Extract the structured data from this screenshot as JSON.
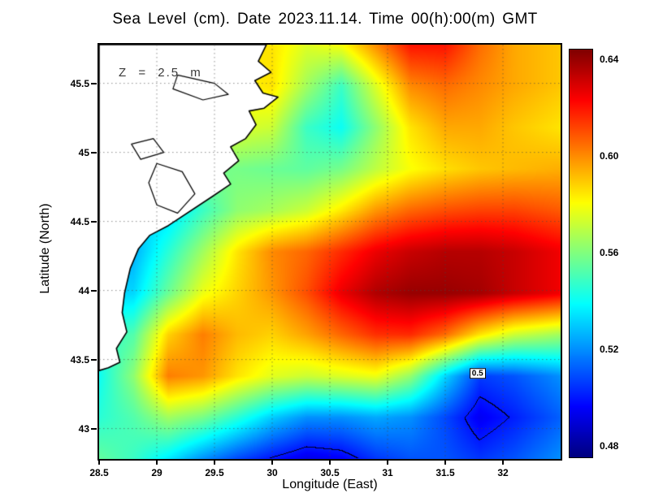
{
  "chart_data": {
    "type": "heatmap",
    "title": "Sea Level (cm). Date 2023.11.14. Time 00(h):00(m) GMT",
    "xlabel": "Longitude (East)",
    "ylabel": "Latitude (North)",
    "annotation": {
      "text": "Z = 2.5 m"
    },
    "xlim": [
      28.5,
      32.5
    ],
    "ylim": [
      42.78,
      45.78
    ],
    "grid_lines": "dotted",
    "colormap": "jet",
    "xticks": [
      {
        "value": 28.5,
        "label": "28.5"
      },
      {
        "value": 29,
        "label": "29"
      },
      {
        "value": 29.5,
        "label": "29.5"
      },
      {
        "value": 30,
        "label": "30"
      },
      {
        "value": 30.5,
        "label": "30.5"
      },
      {
        "value": 31,
        "label": "31"
      },
      {
        "value": 31.5,
        "label": "31.5"
      },
      {
        "value": 32,
        "label": "32"
      }
    ],
    "yticks": [
      {
        "value": 43,
        "label": "43"
      },
      {
        "value": 43.5,
        "label": "43.5"
      },
      {
        "value": 44,
        "label": "44"
      },
      {
        "value": 44.5,
        "label": "44.5"
      },
      {
        "value": 45,
        "label": "45"
      },
      {
        "value": 45.5,
        "label": "45.5"
      }
    ],
    "colorbar": {
      "position": "right",
      "min": 0.475,
      "max": 0.644,
      "ticks": [
        {
          "value": 0.48,
          "label": "0.48"
        },
        {
          "value": 0.52,
          "label": "0.52"
        },
        {
          "value": 0.56,
          "label": "0.56"
        },
        {
          "value": 0.6,
          "label": "0.60"
        },
        {
          "value": 0.64,
          "label": "0.64"
        }
      ]
    },
    "contour": {
      "level": 0.5,
      "label": "0.5",
      "label_lon": 31.78,
      "label_lat": 43.4
    },
    "field": {
      "lons": [
        28.5,
        28.8,
        29.1,
        29.4,
        29.7,
        30.0,
        30.3,
        30.6,
        30.9,
        31.2,
        31.5,
        31.8,
        32.1,
        32.5
      ],
      "lats": [
        45.78,
        45.48,
        45.18,
        44.88,
        44.58,
        44.28,
        43.98,
        43.68,
        43.38,
        43.08,
        42.78
      ],
      "values": [
        [
          0.58,
          0.58,
          0.58,
          0.58,
          0.585,
          0.585,
          0.575,
          0.58,
          0.6,
          0.62,
          0.62,
          0.605,
          0.595,
          0.59
        ],
        [
          0.58,
          0.58,
          0.58,
          0.58,
          0.582,
          0.585,
          0.565,
          0.548,
          0.575,
          0.6,
          0.605,
          0.6,
          0.595,
          0.59
        ],
        [
          0.575,
          0.575,
          0.575,
          0.575,
          0.575,
          0.572,
          0.548,
          0.54,
          0.562,
          0.585,
          0.595,
          0.595,
          0.59,
          0.585
        ],
        [
          0.56,
          0.56,
          0.56,
          0.558,
          0.558,
          0.556,
          0.554,
          0.558,
          0.57,
          0.58,
          0.586,
          0.59,
          0.592,
          0.594
        ],
        [
          0.53,
          0.53,
          0.532,
          0.548,
          0.562,
          0.566,
          0.572,
          0.584,
          0.598,
          0.606,
          0.61,
          0.612,
          0.612,
          0.608
        ],
        [
          0.522,
          0.525,
          0.545,
          0.565,
          0.585,
          0.6,
          0.606,
          0.616,
          0.626,
          0.632,
          0.635,
          0.635,
          0.632,
          0.625
        ],
        [
          0.53,
          0.532,
          0.556,
          0.578,
          0.588,
          0.598,
          0.61,
          0.626,
          0.636,
          0.64,
          0.64,
          0.638,
          0.632,
          0.625
        ],
        [
          0.545,
          0.552,
          0.588,
          0.602,
          0.592,
          0.588,
          0.596,
          0.606,
          0.615,
          0.616,
          0.605,
          0.585,
          0.572,
          0.565
        ],
        [
          0.54,
          0.562,
          0.602,
          0.598,
          0.585,
          0.576,
          0.572,
          0.575,
          0.578,
          0.563,
          0.532,
          0.506,
          0.51,
          0.52
        ],
        [
          0.545,
          0.552,
          0.565,
          0.558,
          0.545,
          0.53,
          0.52,
          0.52,
          0.524,
          0.52,
          0.508,
          0.494,
          0.501,
          0.512
        ],
        [
          0.555,
          0.548,
          0.535,
          0.52,
          0.508,
          0.499,
          0.492,
          0.495,
          0.505,
          0.51,
          0.51,
          0.505,
          0.51,
          0.52
        ]
      ]
    },
    "coastline": [
      [
        28.5,
        45.78
      ],
      [
        29.95,
        45.78
      ],
      [
        29.88,
        45.66
      ],
      [
        29.99,
        45.58
      ],
      [
        29.85,
        45.52
      ],
      [
        29.92,
        45.43
      ],
      [
        30.05,
        45.4
      ],
      [
        29.93,
        45.32
      ],
      [
        29.8,
        45.3
      ],
      [
        29.86,
        45.2
      ],
      [
        29.77,
        45.1
      ],
      [
        29.64,
        45.04
      ],
      [
        29.71,
        44.94
      ],
      [
        29.58,
        44.85
      ],
      [
        29.64,
        44.77
      ],
      [
        29.48,
        44.68
      ],
      [
        29.1,
        44.47
      ],
      [
        28.94,
        44.4
      ],
      [
        28.84,
        44.3
      ],
      [
        28.77,
        44.16
      ],
      [
        28.72,
        43.98
      ],
      [
        28.7,
        43.84
      ],
      [
        28.74,
        43.7
      ],
      [
        28.65,
        43.58
      ],
      [
        28.68,
        43.48
      ],
      [
        28.58,
        43.44
      ],
      [
        28.5,
        43.42
      ]
    ],
    "lakes": [
      [
        [
          29.0,
          44.92
        ],
        [
          29.22,
          44.86
        ],
        [
          29.33,
          44.7
        ],
        [
          29.18,
          44.56
        ],
        [
          29.0,
          44.62
        ],
        [
          28.93,
          44.78
        ]
      ],
      [
        [
          29.18,
          45.56
        ],
        [
          29.5,
          45.5
        ],
        [
          29.62,
          45.42
        ],
        [
          29.4,
          45.38
        ],
        [
          29.14,
          45.46
        ]
      ],
      [
        [
          28.78,
          45.06
        ],
        [
          28.97,
          45.1
        ],
        [
          29.06,
          45.0
        ],
        [
          28.86,
          44.95
        ]
      ]
    ]
  }
}
